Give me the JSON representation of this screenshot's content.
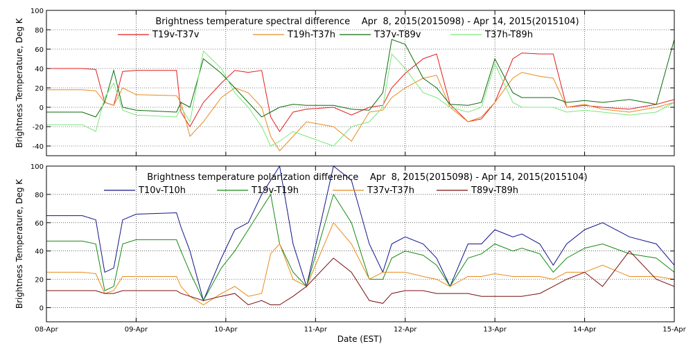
{
  "chart_data": [
    {
      "type": "line",
      "title": "Brightness temperature spectral difference    Apr  8, 2015(2015098) - Apr 14, 2015(2015104)",
      "xlabel": "",
      "ylabel": "Brightness Temperature, Deg K",
      "xlim": [
        0,
        7
      ],
      "ylim": [
        -50,
        100
      ],
      "yticks": [
        -40,
        -20,
        0,
        20,
        40,
        60,
        80,
        100
      ],
      "xtick_labels": [],
      "grid": true,
      "legend": "top, horizontal",
      "series": [
        {
          "name": "T19v-T37v",
          "color": "#e01b1b",
          "x": [
            0,
            0.4,
            0.55,
            0.65,
            0.75,
            0.85,
            1.0,
            1.45,
            1.5,
            1.6,
            1.75,
            1.95,
            2.1,
            2.25,
            2.4,
            2.5,
            2.6,
            2.75,
            2.9,
            3.2,
            3.4,
            3.6,
            3.75,
            3.85,
            4.0,
            4.2,
            4.35,
            4.5,
            4.7,
            4.85,
            5.0,
            5.2,
            5.3,
            5.5,
            5.65,
            5.8,
            6.0,
            6.2,
            6.5,
            6.8,
            7.0
          ],
          "values": [
            40,
            40,
            39,
            5,
            2,
            37,
            38,
            38,
            -5,
            -20,
            5,
            25,
            38,
            36,
            38,
            -10,
            -25,
            -5,
            -2,
            0,
            -8,
            0,
            2,
            20,
            35,
            50,
            55,
            3,
            -15,
            -12,
            5,
            50,
            56,
            55,
            55,
            0,
            2,
            0,
            -2,
            3,
            8
          ]
        },
        {
          "name": "T19h-T37h",
          "color": "#e88a1c",
          "x": [
            0,
            0.4,
            0.55,
            0.65,
            0.75,
            0.85,
            1.0,
            1.45,
            1.5,
            1.6,
            1.75,
            1.95,
            2.1,
            2.25,
            2.4,
            2.5,
            2.6,
            2.75,
            2.9,
            3.2,
            3.4,
            3.6,
            3.75,
            3.85,
            4.0,
            4.2,
            4.35,
            4.5,
            4.7,
            4.85,
            5.0,
            5.2,
            5.3,
            5.5,
            5.65,
            5.8,
            6.0,
            6.2,
            6.5,
            6.8,
            7.0
          ],
          "values": [
            18,
            18,
            17,
            5,
            2,
            20,
            13,
            12,
            5,
            -30,
            -15,
            10,
            20,
            15,
            0,
            -30,
            -45,
            -30,
            -15,
            -20,
            -35,
            -5,
            -3,
            10,
            20,
            30,
            33,
            0,
            -15,
            -10,
            5,
            30,
            36,
            32,
            30,
            0,
            3,
            -2,
            -5,
            0,
            5
          ]
        },
        {
          "name": "T37v-T89v",
          "color": "#0b6b0b",
          "x": [
            0,
            0.4,
            0.55,
            0.65,
            0.75,
            0.85,
            1.0,
            1.45,
            1.5,
            1.6,
            1.75,
            1.95,
            2.1,
            2.25,
            2.4,
            2.5,
            2.6,
            2.75,
            2.9,
            3.2,
            3.4,
            3.6,
            3.75,
            3.85,
            4.0,
            4.2,
            4.35,
            4.5,
            4.7,
            4.85,
            5.0,
            5.2,
            5.3,
            5.5,
            5.65,
            5.8,
            6.0,
            6.2,
            6.5,
            6.8,
            7.0
          ],
          "values": [
            -5,
            -5,
            -10,
            5,
            38,
            0,
            -3,
            -5,
            5,
            0,
            50,
            35,
            20,
            5,
            -10,
            -5,
            0,
            3,
            2,
            2,
            -2,
            -3,
            15,
            70,
            65,
            30,
            20,
            3,
            2,
            5,
            50,
            15,
            10,
            10,
            10,
            5,
            7,
            5,
            8,
            3,
            70
          ]
        },
        {
          "name": "T37h-T89h",
          "color": "#7ae87a",
          "x": [
            0,
            0.4,
            0.55,
            0.65,
            0.75,
            0.85,
            1.0,
            1.45,
            1.5,
            1.6,
            1.75,
            1.95,
            2.1,
            2.25,
            2.4,
            2.5,
            2.6,
            2.75,
            2.9,
            3.2,
            3.4,
            3.6,
            3.75,
            3.85,
            4.0,
            4.2,
            4.35,
            4.5,
            4.7,
            4.85,
            5.0,
            5.2,
            5.3,
            5.5,
            5.65,
            5.8,
            6.0,
            6.2,
            6.5,
            6.8,
            7.0
          ],
          "values": [
            -18,
            -18,
            -25,
            10,
            25,
            -3,
            -8,
            -10,
            0,
            -15,
            58,
            40,
            15,
            0,
            -20,
            -40,
            -35,
            -25,
            -30,
            -40,
            -20,
            -15,
            0,
            55,
            40,
            15,
            10,
            0,
            -5,
            0,
            45,
            5,
            0,
            0,
            0,
            -5,
            -3,
            -5,
            -8,
            -5,
            5
          ]
        }
      ]
    },
    {
      "type": "line",
      "title": "Brightness temperature polarization difference    Apr  8, 2015(2015098) - Apr 14, 2015(2015104)",
      "xlabel": "Date (EST)",
      "ylabel": "Brightness Temperature, Deg K",
      "xlim": [
        0,
        7
      ],
      "ylim": [
        -10,
        100
      ],
      "yticks": [
        0,
        20,
        40,
        60,
        80,
        100
      ],
      "xtick_labels": [
        "08-Apr",
        "09-Apr",
        "10-Apr",
        "11-Apr",
        "12-Apr",
        "13-Apr",
        "14-Apr",
        "15-Apr"
      ],
      "grid": true,
      "legend": "top, horizontal",
      "series": [
        {
          "name": "T10v-T10h",
          "color": "#10108a",
          "x": [
            0,
            0.4,
            0.55,
            0.65,
            0.75,
            0.85,
            1.0,
            1.45,
            1.5,
            1.6,
            1.75,
            1.95,
            2.1,
            2.25,
            2.4,
            2.5,
            2.6,
            2.75,
            2.9,
            3.2,
            3.4,
            3.6,
            3.75,
            3.85,
            4.0,
            4.2,
            4.35,
            4.5,
            4.7,
            4.85,
            5.0,
            5.2,
            5.3,
            5.5,
            5.65,
            5.8,
            6.0,
            6.2,
            6.5,
            6.8,
            7.0
          ],
          "values": [
            65,
            65,
            62,
            25,
            28,
            62,
            66,
            67,
            57,
            40,
            5,
            35,
            55,
            60,
            80,
            90,
            100,
            45,
            15,
            100,
            90,
            45,
            25,
            45,
            50,
            45,
            35,
            15,
            45,
            45,
            55,
            50,
            52,
            45,
            30,
            45,
            55,
            60,
            50,
            45,
            30
          ]
        },
        {
          "name": "T19v-T19h",
          "color": "#138a13",
          "x": [
            0,
            0.4,
            0.55,
            0.65,
            0.75,
            0.85,
            1.0,
            1.45,
            1.5,
            1.6,
            1.75,
            1.95,
            2.1,
            2.25,
            2.4,
            2.5,
            2.6,
            2.75,
            2.9,
            3.2,
            3.4,
            3.6,
            3.75,
            3.85,
            4.0,
            4.2,
            4.35,
            4.5,
            4.7,
            4.85,
            5.0,
            5.2,
            5.3,
            5.5,
            5.65,
            5.8,
            6.0,
            6.2,
            6.5,
            6.8,
            7.0
          ],
          "values": [
            47,
            47,
            45,
            12,
            15,
            45,
            48,
            48,
            40,
            25,
            5,
            28,
            40,
            55,
            70,
            80,
            45,
            25,
            15,
            80,
            60,
            20,
            20,
            35,
            40,
            37,
            30,
            15,
            35,
            38,
            45,
            40,
            42,
            38,
            25,
            35,
            42,
            45,
            38,
            35,
            25
          ]
        },
        {
          "name": "T37v-T37h",
          "color": "#e88a1c",
          "x": [
            0,
            0.4,
            0.55,
            0.65,
            0.75,
            0.85,
            1.0,
            1.45,
            1.5,
            1.6,
            1.75,
            1.95,
            2.1,
            2.25,
            2.4,
            2.5,
            2.6,
            2.75,
            2.9,
            3.2,
            3.4,
            3.6,
            3.75,
            3.85,
            4.0,
            4.2,
            4.35,
            4.5,
            4.7,
            4.85,
            5.0,
            5.2,
            5.3,
            5.5,
            5.65,
            5.8,
            6.0,
            6.2,
            6.5,
            6.8,
            7.0
          ],
          "values": [
            25,
            25,
            24,
            10,
            12,
            22,
            22,
            22,
            15,
            8,
            2,
            10,
            15,
            8,
            10,
            38,
            45,
            20,
            15,
            60,
            45,
            20,
            25,
            25,
            25,
            22,
            20,
            15,
            22,
            22,
            24,
            22,
            22,
            22,
            20,
            25,
            25,
            30,
            22,
            22,
            20
          ]
        },
        {
          "name": "T89v-T89h",
          "color": "#7a0c0c",
          "x": [
            0,
            0.4,
            0.55,
            0.65,
            0.75,
            0.85,
            1.0,
            1.45,
            1.5,
            1.6,
            1.75,
            1.95,
            2.1,
            2.25,
            2.4,
            2.5,
            2.6,
            2.75,
            2.9,
            3.2,
            3.4,
            3.6,
            3.75,
            3.85,
            4.0,
            4.2,
            4.35,
            4.5,
            4.7,
            4.85,
            5.0,
            5.2,
            5.3,
            5.5,
            5.65,
            5.8,
            6.0,
            6.2,
            6.5,
            6.8,
            7.0
          ],
          "values": [
            12,
            12,
            12,
            10,
            10,
            12,
            12,
            12,
            10,
            8,
            5,
            8,
            10,
            2,
            5,
            2,
            2,
            8,
            15,
            35,
            25,
            5,
            3,
            10,
            12,
            12,
            10,
            10,
            10,
            8,
            8,
            8,
            8,
            10,
            15,
            20,
            25,
            15,
            40,
            20,
            15
          ]
        }
      ]
    }
  ]
}
